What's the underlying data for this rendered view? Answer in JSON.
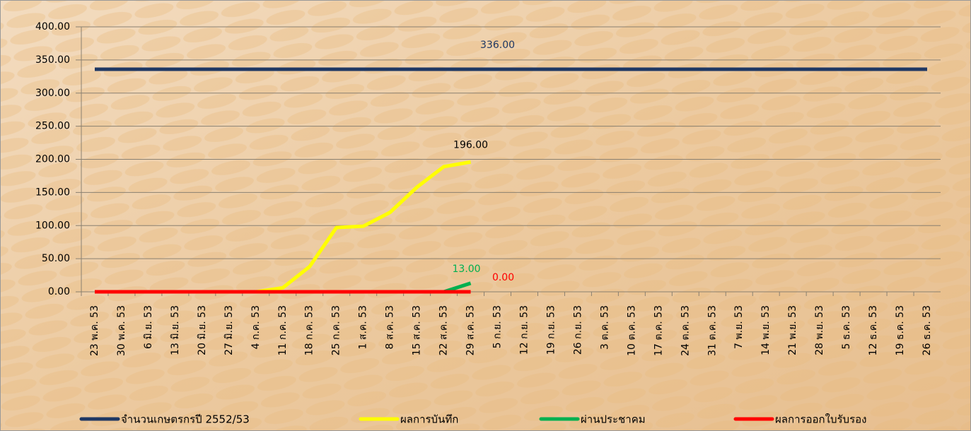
{
  "chart_data": {
    "type": "line",
    "categories": [
      "23 พ.ค. 53",
      "30 พ.ค. 53",
      "6 มิ.ย. 53",
      "13 มิ.ย. 53",
      "20 มิ.ย. 53",
      "27 มิ.ย. 53",
      "4 ก.ค. 53",
      "11 ก.ค. 53",
      "18 ก.ค. 53",
      "25 ก.ค. 53",
      "1 ส.ค. 53",
      "8 ส.ค. 53",
      "15 ส.ค. 53",
      "22 ส.ค. 53",
      "29 ส.ค. 53",
      "5 ก.ย. 53",
      "12 ก.ย. 53",
      "19 ก.ย. 53",
      "26 ก.ย. 53",
      "3 ต.ค. 53",
      "10 ต.ค. 53",
      "17 ต.ค. 53",
      "24 ต.ค. 53",
      "31 ต.ค. 53",
      "7 พ.ย. 53",
      "14 พ.ย. 53",
      "21 พ.ย. 53",
      "28 พ.ย. 53",
      "5 ธ.ค. 53",
      "12 ธ.ค. 53",
      "19 ธ.ค. 53",
      "26 ธ.ค. 53"
    ],
    "series": [
      {
        "name": "จำนวนเกษตรกรปี  2552/53",
        "color": "#1f3864",
        "values": [
          336,
          336,
          336,
          336,
          336,
          336,
          336,
          336,
          336,
          336,
          336,
          336,
          336,
          336,
          336,
          336,
          336,
          336,
          336,
          336,
          336,
          336,
          336,
          336,
          336,
          336,
          336,
          336,
          336,
          336,
          336,
          336
        ],
        "value_labels": [
          null,
          null,
          null,
          null,
          null,
          null,
          null,
          null,
          null,
          null,
          null,
          null,
          null,
          null,
          null,
          "336.00",
          null,
          null,
          null,
          null,
          null,
          null,
          null,
          null,
          null,
          null,
          null,
          null,
          null,
          null,
          null,
          null
        ]
      },
      {
        "name": "ผลการบันทึก",
        "color": "#ffff00",
        "values": [
          0,
          0,
          0,
          0,
          0,
          0,
          0,
          6,
          38,
          97,
          99,
          120,
          158,
          189,
          196,
          null,
          null,
          null,
          null,
          null,
          null,
          null,
          null,
          null,
          null,
          null,
          null,
          null,
          null,
          null,
          null,
          null
        ],
        "value_labels": [
          null,
          null,
          null,
          null,
          null,
          null,
          null,
          null,
          null,
          null,
          null,
          null,
          null,
          null,
          "196.00",
          null,
          null,
          null,
          null,
          null,
          null,
          null,
          null,
          null,
          null,
          null,
          null,
          null,
          null,
          null,
          null,
          null
        ]
      },
      {
        "name": "ผ่านประชาคม",
        "color": "#00b050",
        "values": [
          0,
          0,
          0,
          0,
          0,
          0,
          0,
          0,
          0,
          0,
          0,
          0,
          0,
          0,
          13,
          null,
          null,
          null,
          null,
          null,
          null,
          null,
          null,
          null,
          null,
          null,
          null,
          null,
          null,
          null,
          null,
          null
        ],
        "value_labels": [
          null,
          null,
          null,
          null,
          null,
          null,
          null,
          null,
          null,
          null,
          null,
          null,
          null,
          null,
          "13.00",
          null,
          null,
          null,
          null,
          null,
          null,
          null,
          null,
          null,
          null,
          null,
          null,
          null,
          null,
          null,
          null,
          null
        ]
      },
      {
        "name": "ผลการออกใบรับรอง",
        "color": "#ff0000",
        "values": [
          0,
          0,
          0,
          0,
          0,
          0,
          0,
          0,
          0,
          0,
          0,
          0,
          0,
          0,
          0,
          null,
          null,
          null,
          null,
          null,
          null,
          null,
          null,
          null,
          null,
          null,
          null,
          null,
          null,
          null,
          null,
          null
        ],
        "value_labels": [
          null,
          null,
          null,
          null,
          null,
          null,
          null,
          null,
          null,
          null,
          null,
          null,
          null,
          null,
          "0.00",
          null,
          null,
          null,
          null,
          null,
          null,
          null,
          null,
          null,
          null,
          null,
          null,
          null,
          null,
          null,
          null,
          null
        ]
      }
    ],
    "ylim": [
      0,
      400
    ],
    "yticks": [
      {
        "value": 0,
        "label": "0.00"
      },
      {
        "value": 50,
        "label": "50.00"
      },
      {
        "value": 100,
        "label": "100.00"
      },
      {
        "value": 150,
        "label": "150.00"
      },
      {
        "value": 200,
        "label": "200.00"
      },
      {
        "value": 250,
        "label": "250.00"
      },
      {
        "value": 300,
        "label": "300.00"
      },
      {
        "value": 350,
        "label": "350.00"
      },
      {
        "value": 400,
        "label": "400.00"
      }
    ],
    "grid": true,
    "legend": "bottom"
  }
}
